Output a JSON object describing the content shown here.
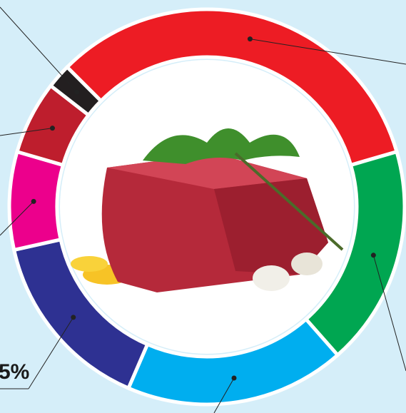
{
  "chart_data": {
    "type": "donut",
    "values": [
      33,
      18,
      18,
      15,
      8,
      6,
      2
    ],
    "colors": [
      "#ed1c24",
      "#00a651",
      "#00aeef",
      "#2e3192",
      "#ec008c",
      "#be1e2d",
      "#231f20"
    ],
    "annotation": "5%"
  }
}
